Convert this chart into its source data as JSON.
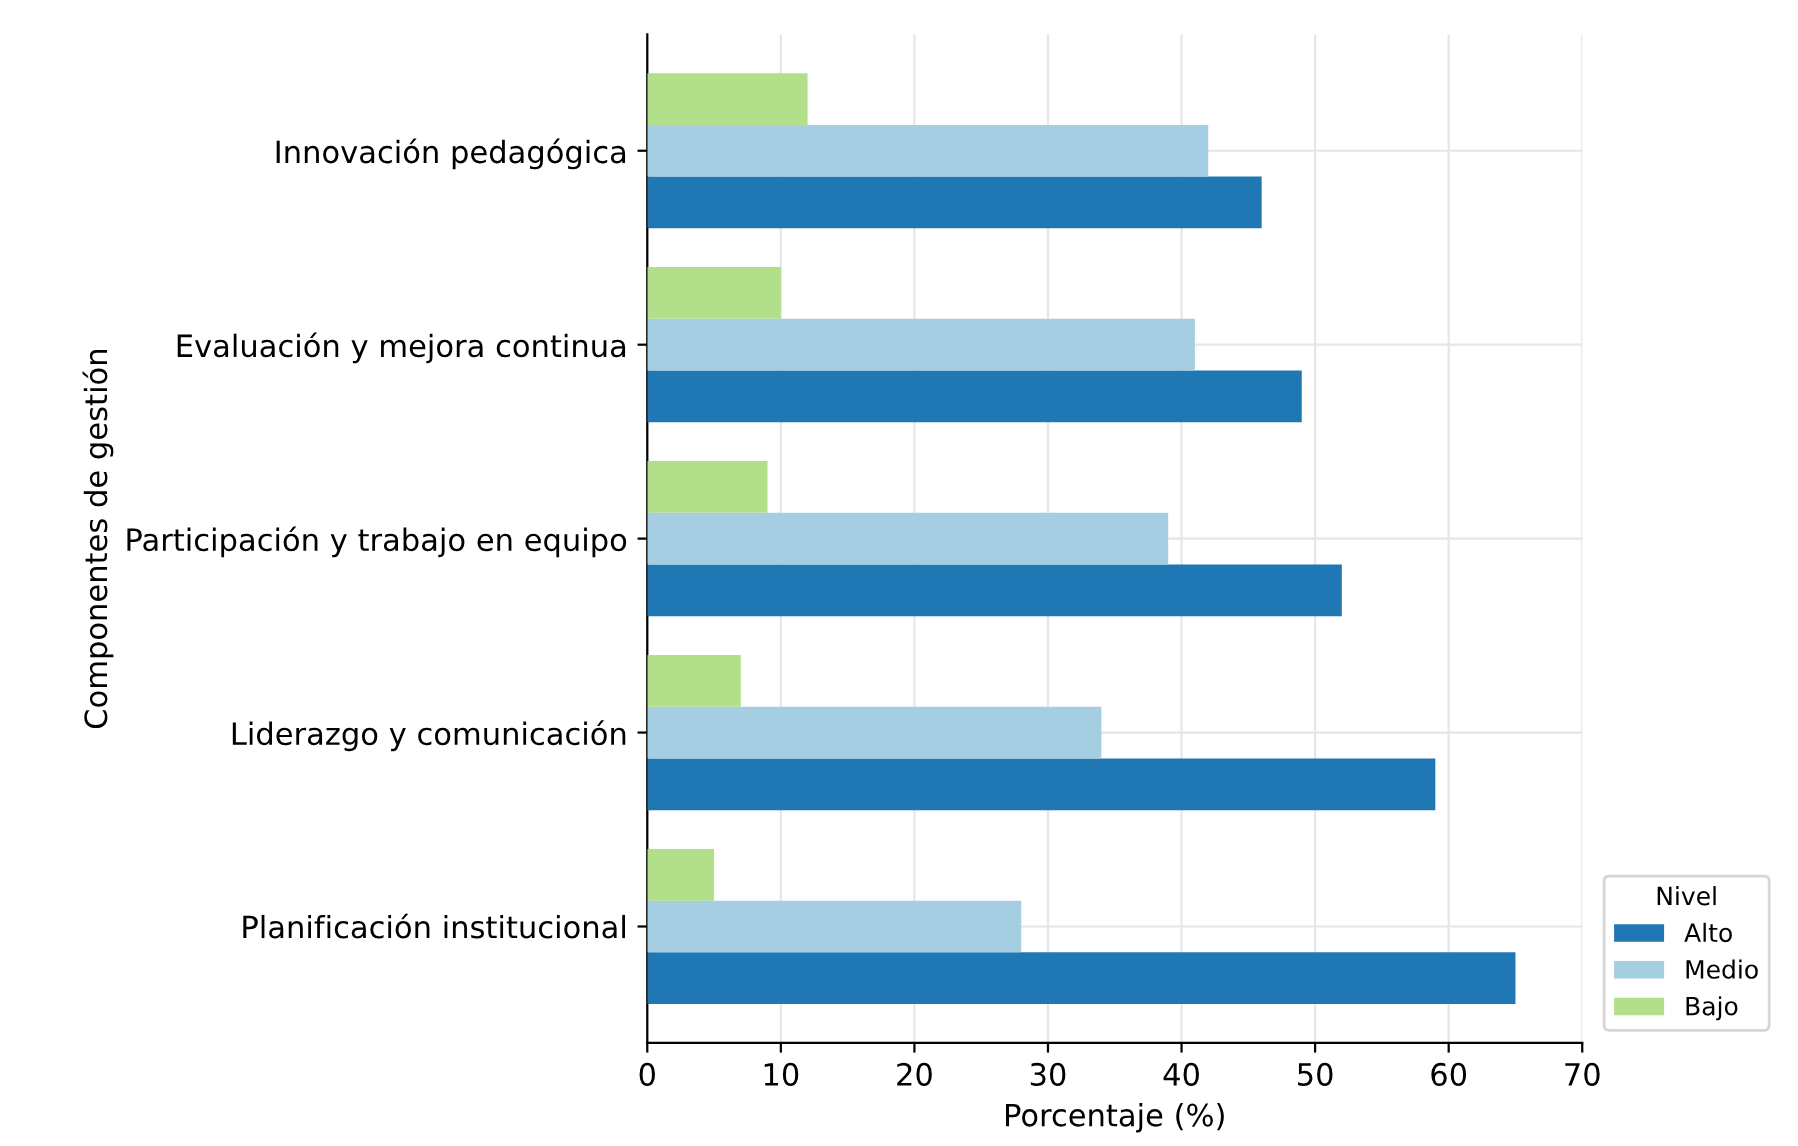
{
  "chart_data": {
    "type": "bar",
    "orientation": "horizontal",
    "categories": [
      "Innovación pedagógica",
      "Evaluación y mejora continua",
      "Participación y trabajo en equipo",
      "Liderazgo y comunicación",
      "Planificación institucional"
    ],
    "series": [
      {
        "name": "Alto",
        "color": "#1f78b4",
        "values": [
          46,
          49,
          52,
          59,
          65
        ]
      },
      {
        "name": "Medio",
        "color": "#a6cee3",
        "values": [
          42,
          41,
          39,
          34,
          28
        ]
      },
      {
        "name": "Bajo",
        "color": "#b2df8a",
        "values": [
          12,
          10,
          9,
          7,
          5
        ]
      }
    ],
    "xlabel": "Porcentaje (%)",
    "ylabel": "Componentes de gestión",
    "legend_title": "Nivel",
    "xlim": [
      0,
      70
    ],
    "xticks": [
      0,
      10,
      20,
      30,
      40,
      50,
      60,
      70
    ],
    "grid": true,
    "legend": "bottom right"
  }
}
